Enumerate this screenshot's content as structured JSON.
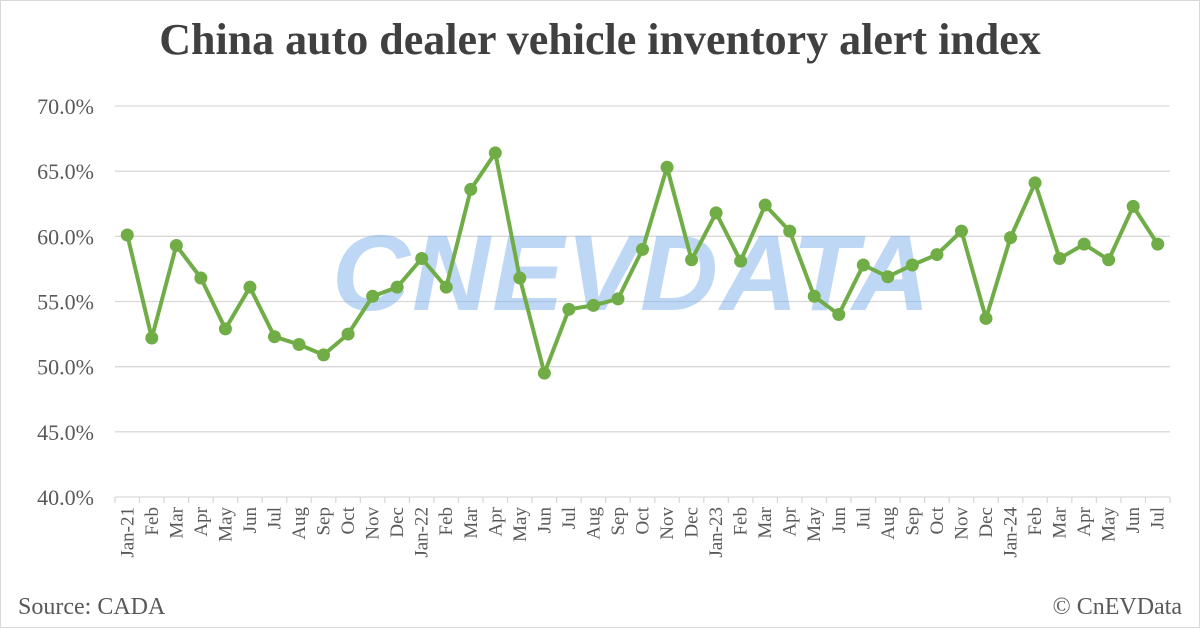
{
  "title": "China auto dealer vehicle inventory alert index",
  "footer": {
    "source": "Source: CADA",
    "copyright": "© CnEVData"
  },
  "watermark": "CNEVDATA",
  "colors": {
    "line": "#70ad47",
    "grid": "#d9d9d9",
    "text": "#595959",
    "title": "#404040"
  },
  "chart_data": {
    "type": "line",
    "title": "China auto dealer vehicle inventory alert index",
    "xlabel": "",
    "ylabel": "",
    "ylim": [
      40,
      70
    ],
    "y_ticks": [
      "40.0%",
      "45.0%",
      "50.0%",
      "55.0%",
      "60.0%",
      "65.0%",
      "70.0%"
    ],
    "grid": true,
    "categories": [
      "Jan-21",
      "Feb",
      "Mar",
      "Apr",
      "May",
      "Jun",
      "Jul",
      "Aug",
      "Sep",
      "Oct",
      "Nov",
      "Dec",
      "Jan-22",
      "Feb",
      "Mar",
      "Apr",
      "May",
      "Jun",
      "Jul",
      "Aug",
      "Sep",
      "Oct",
      "Nov",
      "Dec",
      "Jan-23",
      "Feb",
      "Mar",
      "Apr",
      "May",
      "Jun",
      "Jul",
      "Aug",
      "Sep",
      "Oct",
      "Nov",
      "Dec",
      "Jan-24",
      "Feb",
      "Mar",
      "Apr",
      "May",
      "Jun",
      "Jul"
    ],
    "series": [
      {
        "values": [
          60.1,
          52.2,
          59.3,
          56.8,
          52.9,
          56.1,
          52.3,
          51.7,
          50.9,
          52.5,
          55.4,
          56.1,
          58.3,
          56.1,
          63.6,
          66.4,
          56.8,
          49.5,
          54.4,
          54.7,
          55.2,
          59.0,
          65.3,
          58.2,
          61.8,
          58.1,
          62.4,
          60.4,
          55.4,
          54.0,
          57.8,
          56.9,
          57.8,
          58.6,
          60.4,
          53.7,
          59.9,
          64.1,
          58.3,
          59.4,
          58.2,
          62.3,
          59.4
        ]
      }
    ]
  }
}
